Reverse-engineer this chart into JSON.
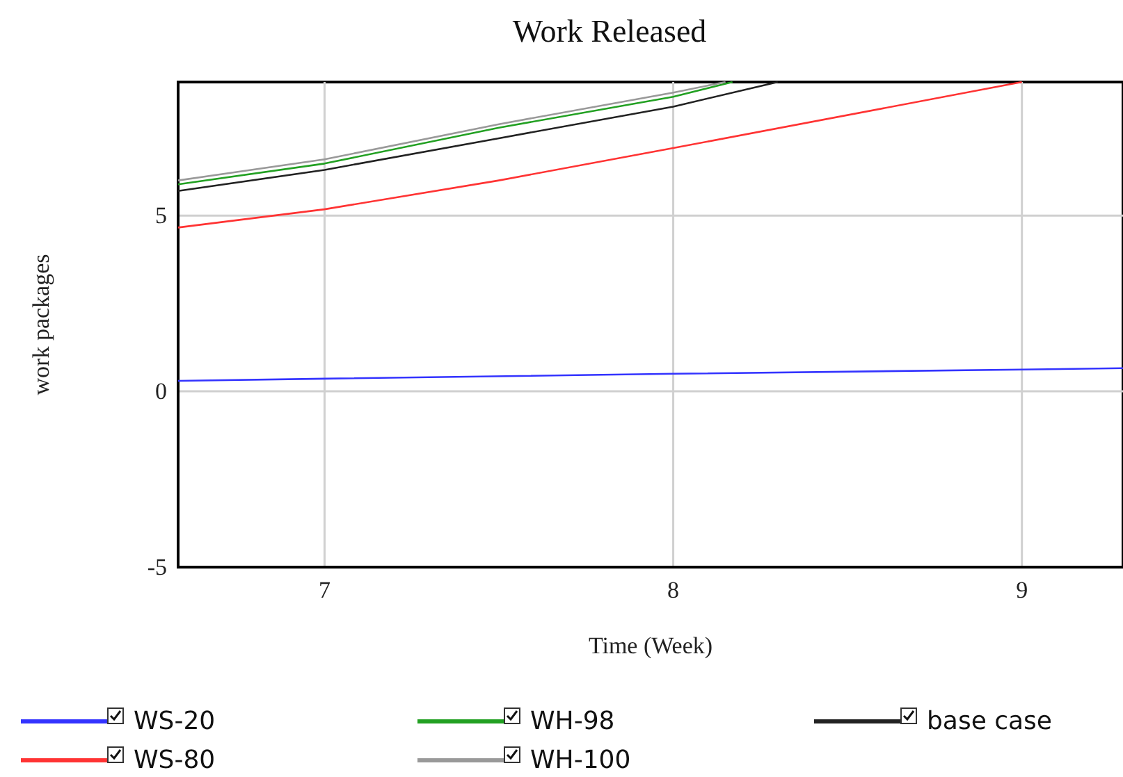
{
  "chart_data": {
    "type": "line",
    "title": "Work Released",
    "xlabel": "Time (Week)",
    "ylabel": "work packages",
    "xlim": [
      6.58,
      9.29
    ],
    "xticks": [
      7,
      8,
      9
    ],
    "ylim": [
      -5,
      8.8
    ],
    "yticks": [
      -5,
      0,
      5
    ],
    "grid": true,
    "legend": "bottom",
    "marker": "none",
    "line_style": "solid",
    "series": [
      {
        "name": "WS-20",
        "color": "#3333ff",
        "x": [
          6.58,
          7,
          8,
          9,
          9.29
        ],
        "values": [
          0.3,
          0.36,
          0.5,
          0.62,
          0.66
        ]
      },
      {
        "name": "WS-80",
        "color": "#ff3333",
        "x": [
          6.58,
          7,
          7.5,
          8,
          9
        ],
        "values": [
          4.66,
          5.18,
          6.0,
          6.92,
          8.8
        ]
      },
      {
        "name": "WH-98",
        "color": "#22a022",
        "x": [
          6.58,
          7,
          7.5,
          8,
          8.17
        ],
        "values": [
          5.89,
          6.48,
          7.5,
          8.38,
          8.8
        ]
      },
      {
        "name": "WH-100",
        "color": "#999999",
        "x": [
          6.58,
          7,
          7.5,
          8,
          8.15
        ],
        "values": [
          6.0,
          6.6,
          7.6,
          8.5,
          8.8
        ]
      },
      {
        "name": "base case",
        "color": "#222222",
        "x": [
          6.58,
          7,
          7.5,
          8,
          8.3
        ],
        "values": [
          5.7,
          6.3,
          7.2,
          8.1,
          8.8
        ]
      }
    ]
  }
}
